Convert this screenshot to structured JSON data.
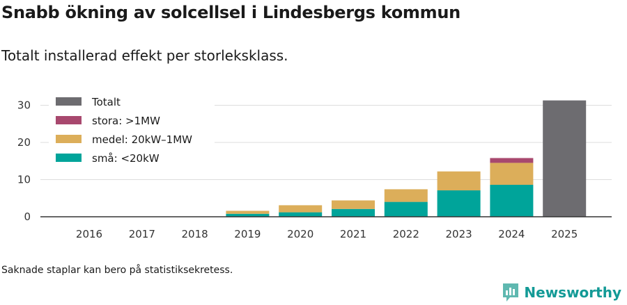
{
  "title": "Snabb ökning av solcellsel i Lindesbergs kommun",
  "subtitle": "Totalt installerad effekt per storleksklass.",
  "footnote": "Saknade staplar kan bero på statistiksekretess.",
  "brand": "Newsworthy",
  "colors": {
    "sma": "#00a49a",
    "medel": "#dcae5a",
    "stora": "#a8486e",
    "totalt": "#6d6c70",
    "grid": "#dddddd",
    "axis": "#333333"
  },
  "chart_data": {
    "type": "bar",
    "stacked": true,
    "categories": [
      "2016",
      "2017",
      "2018",
      "2019",
      "2020",
      "2021",
      "2022",
      "2023",
      "2024",
      "2025"
    ],
    "ylim": [
      0,
      32
    ],
    "yticks": [
      0,
      10,
      20,
      30
    ],
    "ytick_labels": [
      "0",
      "10",
      "20",
      "30"
    ],
    "grid": true,
    "legend_position": "top-left",
    "series": [
      {
        "key": "sma",
        "name": "små: <20kW",
        "values": [
          0,
          0,
          0,
          0.8,
          1.2,
          2.1,
          4.0,
          7.1,
          8.6,
          0
        ]
      },
      {
        "key": "medel",
        "name": "medel: 20kW–1MW",
        "values": [
          0,
          0,
          0,
          0.8,
          1.9,
          2.3,
          3.4,
          5.1,
          5.9,
          0
        ]
      },
      {
        "key": "stora",
        "name": "stora: >1MW",
        "values": [
          0,
          0,
          0,
          0,
          0,
          0,
          0,
          0,
          1.3,
          0
        ]
      },
      {
        "key": "totalt",
        "name": "Totalt",
        "values": [
          0,
          0,
          0,
          0,
          0,
          0,
          0,
          0,
          0,
          31.3
        ]
      }
    ],
    "legend_order": [
      "totalt",
      "stora",
      "medel",
      "sma"
    ]
  }
}
